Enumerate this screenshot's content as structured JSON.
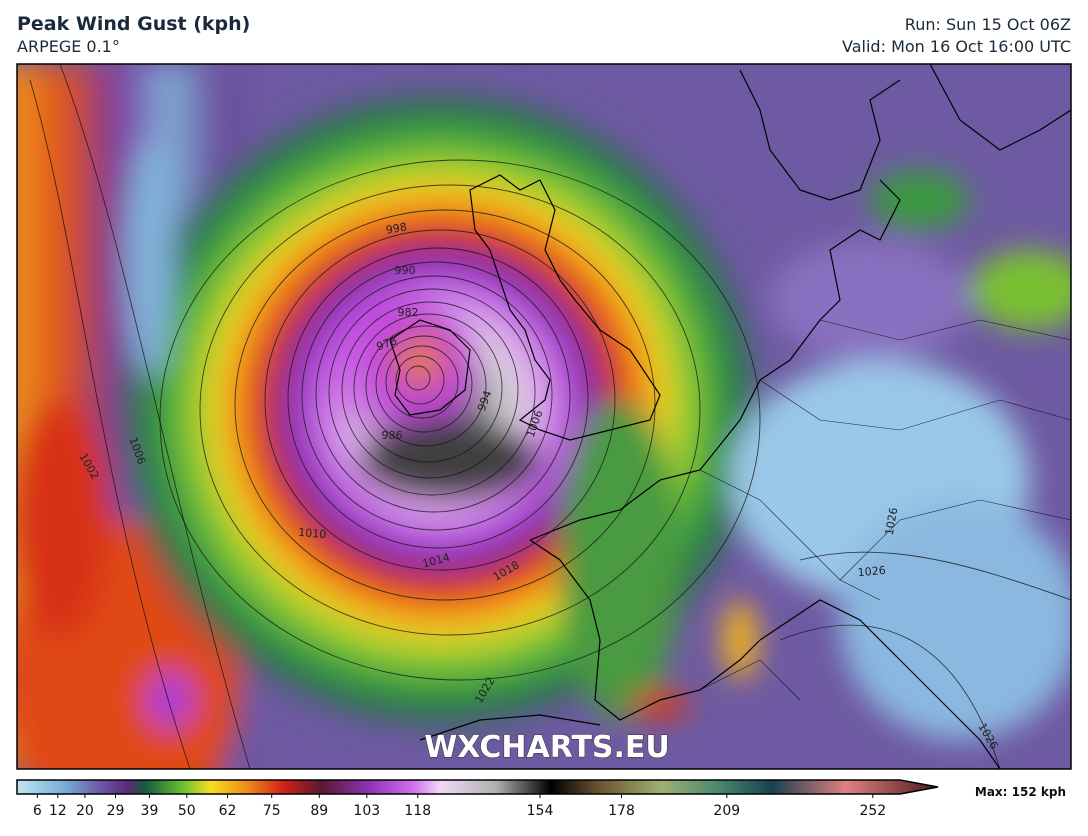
{
  "header": {
    "title": "Peak Wind Gust (kph)",
    "subtitle": "ARPEGE 0.1°",
    "run": "Run: Sun 15 Oct 06Z",
    "valid": "Valid: Mon 16 Oct 16:00 UTC"
  },
  "map": {
    "watermark": "WXCHARTS.EU",
    "isobar_labels": [
      "998",
      "990",
      "982",
      "978",
      "986",
      "994",
      "1006",
      "1002",
      "1006",
      "1010",
      "1014",
      "1018",
      "1022",
      "1026",
      "1026",
      "1026"
    ]
  },
  "colorbar": {
    "lim": [
      0,
      260
    ],
    "ticks": [
      6,
      12,
      20,
      29,
      39,
      50,
      62,
      75,
      89,
      103,
      118,
      154,
      178,
      209,
      252
    ],
    "max_label": "Max: 152 kph"
  }
}
